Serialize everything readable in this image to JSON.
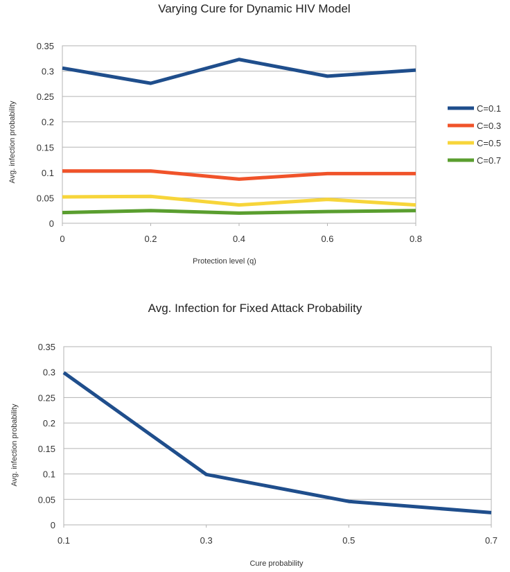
{
  "chart_data": [
    {
      "type": "line",
      "title": "Varying Cure for Dynamic HIV Model",
      "xlabel": "Protection level (q)",
      "ylabel": "Avg. infection probability",
      "x": [
        0,
        0.2,
        0.4,
        0.6,
        0.8
      ],
      "xticks": [
        "0",
        "0.2",
        "0.4",
        "0.6",
        "0.8"
      ],
      "xlim": [
        0,
        0.8
      ],
      "ylim": [
        0,
        0.35
      ],
      "yticks": [
        "0",
        "0.05",
        "0.1",
        "0.15",
        "0.2",
        "0.25",
        "0.3",
        "0.35"
      ],
      "grid": true,
      "legend_position": "right",
      "series": [
        {
          "name": "C=0.1",
          "color": "#1f4e8c",
          "values": [
            0.306,
            0.276,
            0.323,
            0.29,
            0.302
          ]
        },
        {
          "name": "C=0.3",
          "color": "#f0532a",
          "values": [
            0.103,
            0.103,
            0.087,
            0.098,
            0.098
          ]
        },
        {
          "name": "C=0.5",
          "color": "#f7d53a",
          "values": [
            0.052,
            0.053,
            0.036,
            0.047,
            0.036
          ]
        },
        {
          "name": "C=0.7",
          "color": "#5a9e2f",
          "values": [
            0.021,
            0.025,
            0.02,
            0.023,
            0.025
          ]
        }
      ]
    },
    {
      "type": "line",
      "title": "Avg. Infection for Fixed Attack Probability",
      "xlabel": "Cure probability",
      "ylabel": "Avg. infection probability",
      "x": [
        0.1,
        0.3,
        0.5,
        0.7
      ],
      "xticks": [
        "0.1",
        "0.3",
        "0.5",
        "0.7"
      ],
      "xlim": [
        0.1,
        0.7
      ],
      "ylim": [
        0,
        0.35
      ],
      "yticks": [
        "0",
        "0.05",
        "0.1",
        "0.15",
        "0.2",
        "0.25",
        "0.3",
        "0.35"
      ],
      "grid": true,
      "legend_position": "none",
      "series": [
        {
          "color": "#1f4e8c",
          "values": [
            0.299,
            0.099,
            0.046,
            0.024
          ]
        }
      ]
    }
  ]
}
